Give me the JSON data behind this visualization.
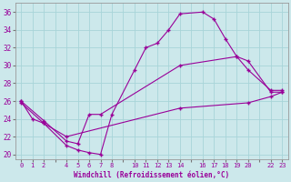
{
  "xlabel": "Windchill (Refroidissement éolien,°C)",
  "bg_color": "#cce8eb",
  "grid_color": "#a8d4d8",
  "line_color": "#990099",
  "ylim": [
    19.5,
    37
  ],
  "xlim": [
    -0.5,
    23.5
  ],
  "yticks": [
    20,
    22,
    24,
    26,
    28,
    30,
    32,
    34,
    36
  ],
  "xtick_positions": [
    0,
    1,
    2,
    3,
    4,
    5,
    6,
    7,
    8,
    9,
    10,
    11,
    12,
    13,
    14,
    15,
    16,
    17,
    18,
    19,
    20,
    21,
    22,
    23
  ],
  "xtick_labels": [
    "0",
    "1",
    "2",
    "",
    "4",
    "5",
    "6",
    "7",
    "8",
    "",
    "10",
    "11",
    "12",
    "13",
    "14",
    "",
    "16",
    "17",
    "18",
    "19",
    "20",
    "",
    "22",
    "23"
  ],
  "line1_x": [
    0,
    1,
    2,
    4,
    5,
    6,
    7,
    8,
    10,
    11,
    12,
    13,
    14,
    16,
    17,
    18,
    19,
    20,
    22,
    23
  ],
  "line1_y": [
    26,
    24,
    23.5,
    21,
    20.5,
    20.2,
    20.0,
    24.5,
    29.5,
    32,
    32.5,
    34,
    35.8,
    36,
    35.2,
    33,
    31,
    30.5,
    27,
    27
  ],
  "line2_x": [
    0,
    2,
    4,
    5,
    6,
    7,
    14,
    19,
    20,
    22,
    23
  ],
  "line2_y": [
    26,
    23.8,
    21.5,
    21.2,
    24.5,
    24.5,
    30,
    31,
    29.5,
    27.2,
    27.2
  ],
  "line3_x": [
    0,
    2,
    4,
    14,
    20,
    22,
    23
  ],
  "line3_y": [
    25.8,
    23.5,
    22,
    25.2,
    25.8,
    26.5,
    27
  ]
}
